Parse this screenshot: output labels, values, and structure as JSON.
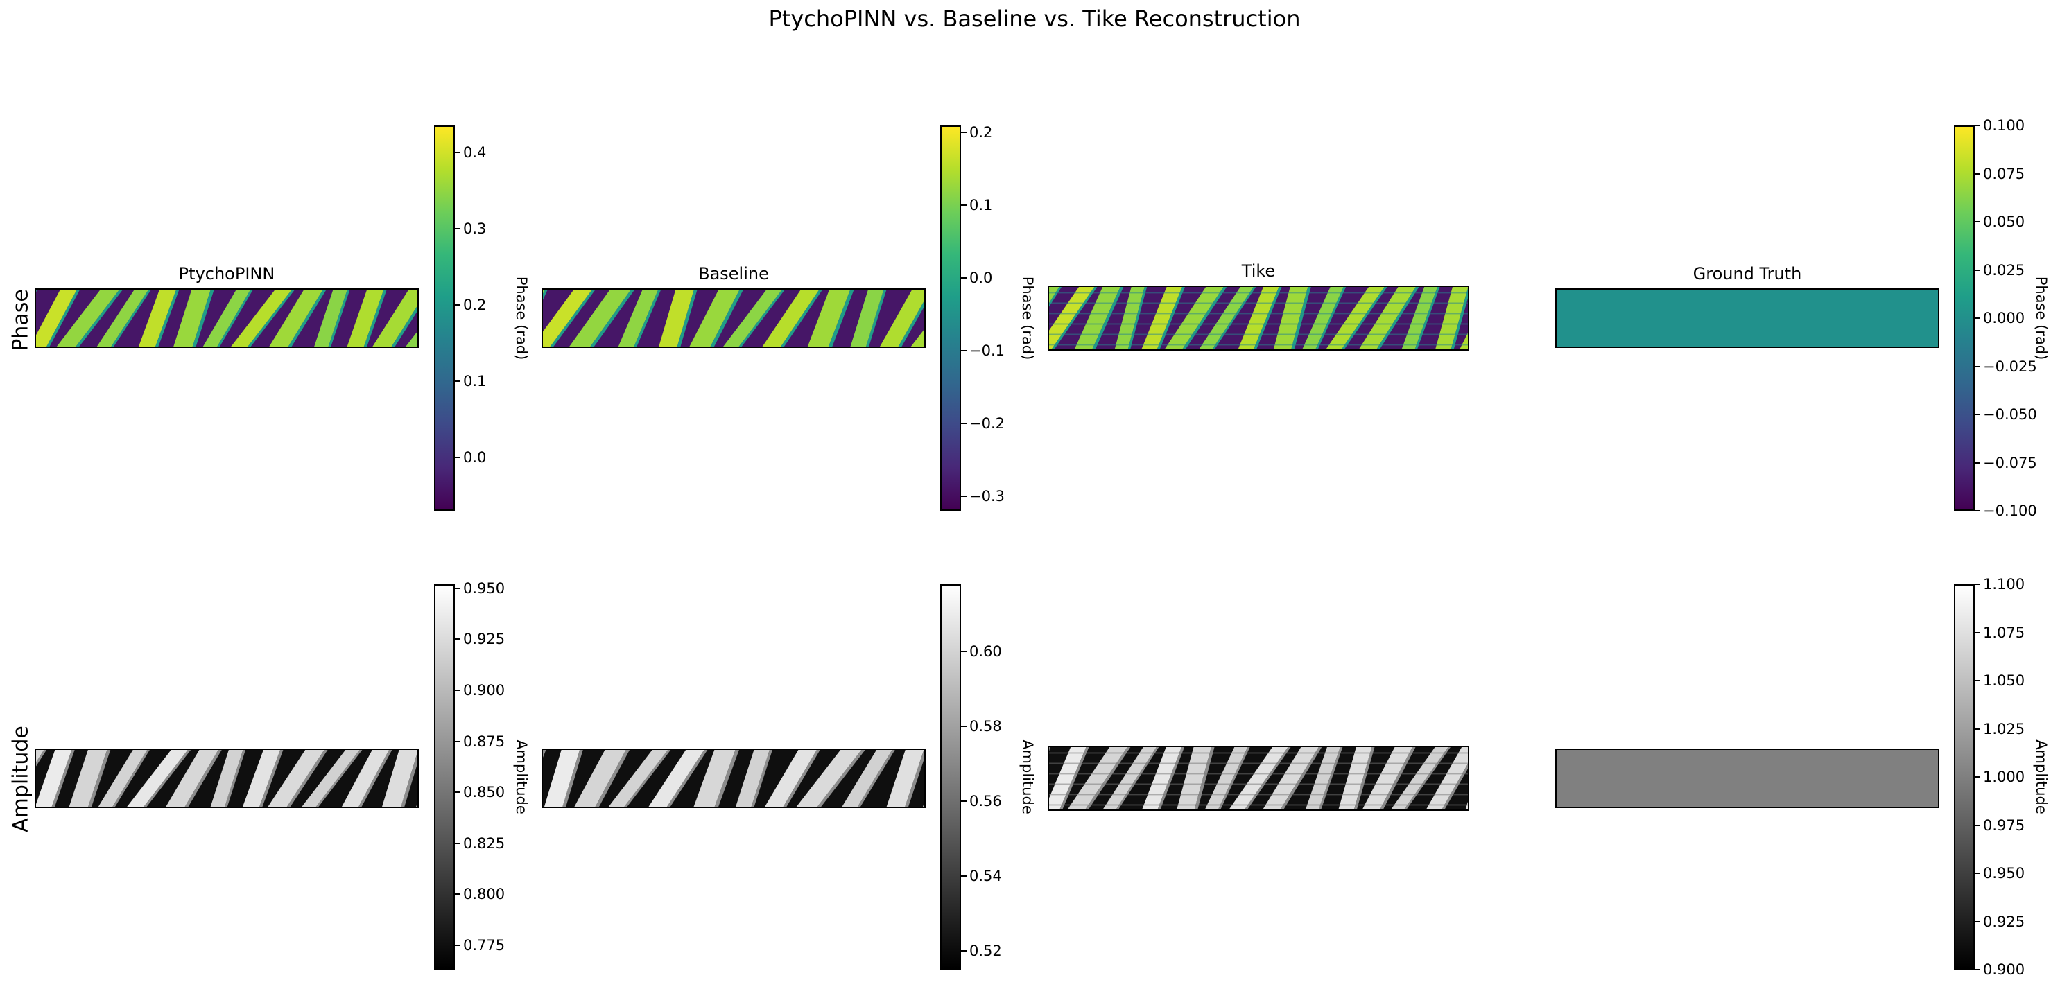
{
  "figure_title": "PtychoPINN vs. Baseline vs. Tike Reconstruction",
  "row_labels": [
    "Phase",
    "Amplitude"
  ],
  "colors": {
    "viridis": [
      "#440154",
      "#482878",
      "#3e4a89",
      "#31688e",
      "#26828e",
      "#1f9e89",
      "#35b779",
      "#6ece58",
      "#b5de2b",
      "#fde725"
    ],
    "gray": [
      "#000000",
      "#ffffff"
    ],
    "ground_truth_phase": "#21918c",
    "ground_truth_amplitude": "#808080"
  },
  "chart_data": [
    {
      "type": "heatmap",
      "row": "Phase",
      "title": "PtychoPINN",
      "colormap": "viridis",
      "colorbar": {
        "label": "Phase (rad)",
        "min": -0.07,
        "max": 0.435,
        "ticks": [
          0.0,
          0.1,
          0.2,
          0.3,
          0.4
        ],
        "tick_labels": [
          "0.0",
          "0.1",
          "0.2",
          "0.3",
          "0.4"
        ]
      },
      "pattern": {
        "stripes": 11,
        "kind": "tilted-stripes",
        "value_range": [
          -0.07,
          0.43
        ]
      }
    },
    {
      "type": "heatmap",
      "row": "Phase",
      "title": "Baseline",
      "colormap": "viridis",
      "colorbar": {
        "label": "Phase (rad)",
        "min": -0.32,
        "max": 0.21,
        "ticks": [
          -0.3,
          -0.2,
          -0.1,
          0.0,
          0.1,
          0.2
        ],
        "tick_labels": [
          "−0.3",
          "−0.2",
          "−0.1",
          "0.0",
          "0.1",
          "0.2"
        ]
      },
      "pattern": {
        "stripes": 10,
        "kind": "tilted-stripes",
        "value_range": [
          -0.32,
          0.21
        ]
      }
    },
    {
      "type": "heatmap",
      "row": "Phase",
      "title": "Tike",
      "colormap": "viridis",
      "pattern": {
        "stripes": 13,
        "kind": "tilted-stripes-noisy",
        "value_range": [
          -0.3,
          0.3
        ]
      }
    },
    {
      "type": "heatmap",
      "row": "Phase",
      "title": "Ground Truth",
      "colormap": "viridis",
      "colorbar": {
        "label": "Phase (rad)",
        "min": -0.1,
        "max": 0.1,
        "ticks": [
          -0.1,
          -0.075,
          -0.05,
          -0.025,
          0.0,
          0.025,
          0.05,
          0.075,
          0.1
        ],
        "tick_labels": [
          "−0.100",
          "−0.075",
          "−0.050",
          "−0.025",
          "0.000",
          "0.025",
          "0.050",
          "0.075",
          "0.100"
        ]
      },
      "pattern": {
        "kind": "uniform",
        "value": 0.0
      }
    },
    {
      "type": "heatmap",
      "row": "Amplitude",
      "title": "",
      "colormap": "gray",
      "colorbar": {
        "label": "Amplitude",
        "min": 0.763,
        "max": 0.952,
        "ticks": [
          0.775,
          0.8,
          0.825,
          0.85,
          0.875,
          0.9,
          0.925,
          0.95
        ],
        "tick_labels": [
          "0.775",
          "0.800",
          "0.825",
          "0.850",
          "0.875",
          "0.900",
          "0.925",
          "0.950"
        ]
      },
      "pattern": {
        "stripes": 11,
        "kind": "tilted-stripes",
        "value_range": [
          0.763,
          0.952
        ]
      }
    },
    {
      "type": "heatmap",
      "row": "Amplitude",
      "title": "",
      "colormap": "gray",
      "colorbar": {
        "label": "Amplitude",
        "min": 0.515,
        "max": 0.618,
        "ticks": [
          0.52,
          0.54,
          0.56,
          0.58,
          0.6
        ],
        "tick_labels": [
          "0.52",
          "0.54",
          "0.56",
          "0.58",
          "0.60"
        ]
      },
      "pattern": {
        "stripes": 10,
        "kind": "tilted-stripes",
        "value_range": [
          0.515,
          0.618
        ]
      }
    },
    {
      "type": "heatmap",
      "row": "Amplitude",
      "title": "",
      "colormap": "gray",
      "pattern": {
        "stripes": 13,
        "kind": "tilted-stripes-noisy",
        "value_range": [
          0.5,
          1.0
        ]
      }
    },
    {
      "type": "heatmap",
      "row": "Amplitude",
      "title": "",
      "colormap": "gray",
      "colorbar": {
        "label": "Amplitude",
        "min": 0.9,
        "max": 1.1,
        "ticks": [
          0.9,
          0.925,
          0.95,
          0.975,
          1.0,
          1.025,
          1.05,
          1.075,
          1.1
        ],
        "tick_labels": [
          "0.900",
          "0.925",
          "0.950",
          "0.975",
          "1.000",
          "1.025",
          "1.050",
          "1.075",
          "1.100"
        ]
      },
      "pattern": {
        "kind": "uniform",
        "value": 1.0
      }
    }
  ]
}
